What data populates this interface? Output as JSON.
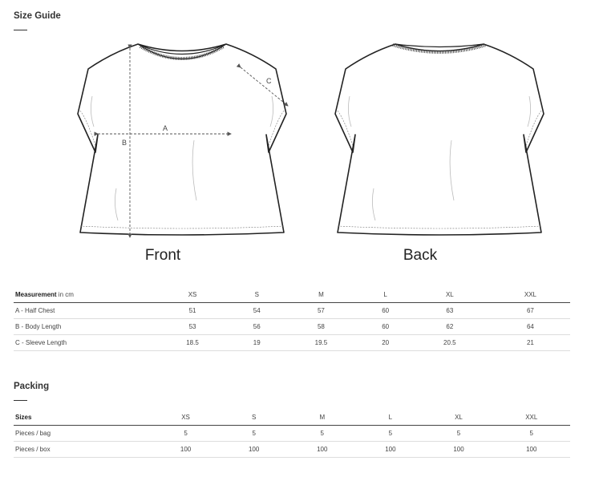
{
  "size_guide": {
    "title": "Size Guide",
    "front_label": "Front",
    "back_label": "Back",
    "measure_labels": {
      "a": "A",
      "b": "B",
      "c": "C"
    }
  },
  "measurements": {
    "header_bold": "Measurement",
    "header_unit": " in cm",
    "sizes": [
      "XS",
      "S",
      "M",
      "L",
      "XL",
      "XXL"
    ],
    "rows": [
      {
        "label": "A - Half Chest",
        "values": [
          "51",
          "54",
          "57",
          "60",
          "63",
          "67"
        ]
      },
      {
        "label": "B - Body Length",
        "values": [
          "53",
          "56",
          "58",
          "60",
          "62",
          "64"
        ]
      },
      {
        "label": "C - Sleeve Length",
        "values": [
          "18.5",
          "19",
          "19.5",
          "20",
          "20.5",
          "21"
        ]
      }
    ]
  },
  "packing": {
    "title": "Packing",
    "header": "Sizes",
    "sizes": [
      "XS",
      "S",
      "M",
      "L",
      "XL",
      "XXL"
    ],
    "rows": [
      {
        "label": "Pieces / bag",
        "values": [
          "5",
          "5",
          "5",
          "5",
          "5",
          "5"
        ]
      },
      {
        "label": "Pieces / box",
        "values": [
          "100",
          "100",
          "100",
          "100",
          "100",
          "100"
        ]
      }
    ]
  }
}
